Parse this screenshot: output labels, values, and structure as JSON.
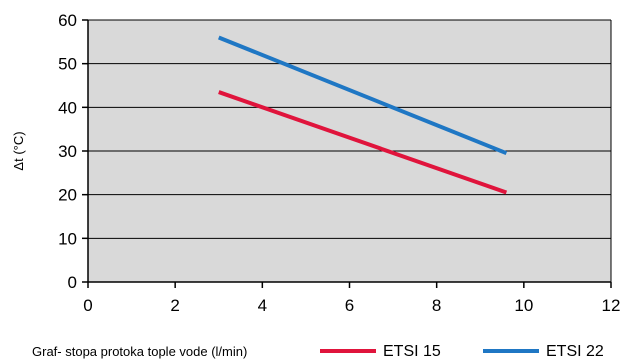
{
  "chart_data": {
    "type": "line",
    "title": "",
    "xlabel": "Graf- stopa protoka tople vode (l/min)",
    "ylabel": "Δt (°C)",
    "xlim": [
      0,
      12
    ],
    "ylim": [
      0,
      60
    ],
    "x_ticks": [
      0,
      2,
      4,
      6,
      8,
      10,
      12
    ],
    "y_ticks": [
      0,
      10,
      20,
      30,
      40,
      50,
      60
    ],
    "x_tick_labels": [
      "0",
      "2",
      "4",
      "6",
      "8",
      "10",
      "12"
    ],
    "y_tick_labels": [
      "0",
      "10",
      "20",
      "30",
      "40",
      "50",
      "60"
    ],
    "grid": "horizontal",
    "plot_background": "#d9d9d9",
    "legend_position": "bottom",
    "series": [
      {
        "name": "ETSI 15",
        "color": "#e0143c",
        "x": [
          3,
          9.6
        ],
        "y": [
          43.5,
          20.5
        ]
      },
      {
        "name": "ETSI 22",
        "color": "#1f77c4",
        "x": [
          3,
          9.6
        ],
        "y": [
          56,
          29.5
        ]
      }
    ]
  }
}
